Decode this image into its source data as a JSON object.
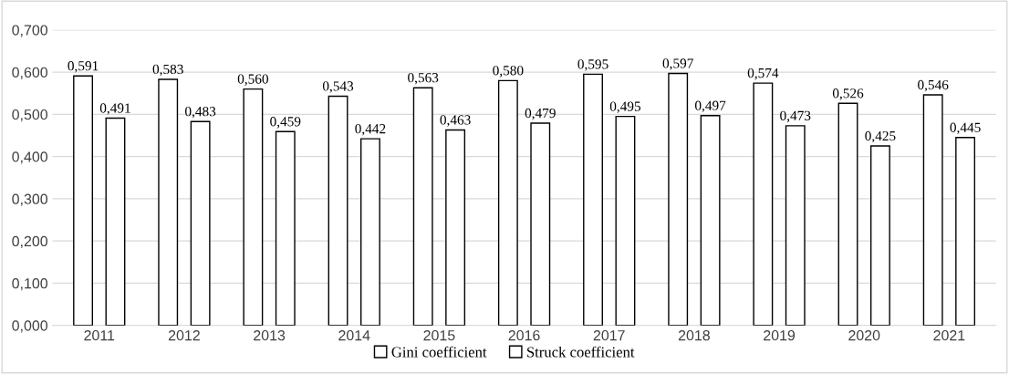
{
  "chart_data": {
    "type": "bar",
    "categories": [
      "2011",
      "2012",
      "2013",
      "2014",
      "2015",
      "2016",
      "2017",
      "2018",
      "2019",
      "2020",
      "2021"
    ],
    "series": [
      {
        "name": "Gini coefficient",
        "color": "#ffffff",
        "values": [
          0.591,
          0.583,
          0.56,
          0.543,
          0.563,
          0.58,
          0.595,
          0.597,
          0.574,
          0.526,
          0.546
        ],
        "value_labels": [
          "0,591",
          "0,583",
          "0,560",
          "0,543",
          "0,563",
          "0,580",
          "0,595",
          "0,597",
          "0,574",
          "0,526",
          "0,546"
        ]
      },
      {
        "name": "Struck coefficient",
        "color": "#ffffff",
        "values": [
          0.491,
          0.483,
          0.459,
          0.442,
          0.463,
          0.479,
          0.495,
          0.497,
          0.473,
          0.425,
          0.445
        ],
        "value_labels": [
          "0,491",
          "0,483",
          "0,459",
          "0,442",
          "0,463",
          "0,479",
          "0,495",
          "0,497",
          "0,473",
          "0,425",
          "0,445"
        ]
      }
    ],
    "ylim": [
      0,
      0.7
    ],
    "yticks": [
      {
        "value": 0,
        "label": "0,000"
      },
      {
        "value": 0.1,
        "label": "0,100"
      },
      {
        "value": 0.2,
        "label": "0,200"
      },
      {
        "value": 0.3,
        "label": "0,300"
      },
      {
        "value": 0.4,
        "label": "0,400"
      },
      {
        "value": 0.5,
        "label": "0,500"
      },
      {
        "value": 0.6,
        "label": "0,600"
      },
      {
        "value": 0.7,
        "label": "0,700"
      }
    ],
    "grid": "y",
    "legend": "bottom"
  }
}
